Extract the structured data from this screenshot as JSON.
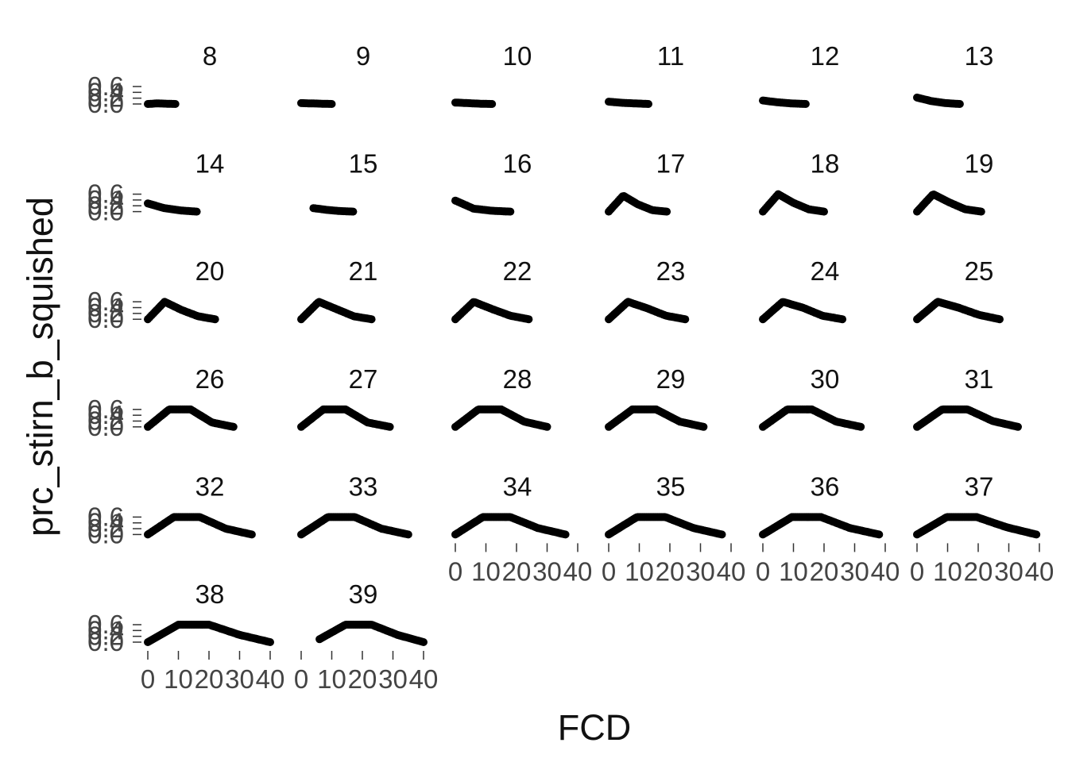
{
  "chart_data": {
    "type": "scatter",
    "facet_by": "panel",
    "xlabel": "FCD",
    "ylabel": "prc_stirn_b_squished",
    "xlim": [
      0,
      40
    ],
    "ylim": [
      0,
      0.6
    ],
    "x_ticks": [
      0,
      10,
      20,
      30,
      40
    ],
    "x_tick_labels": [
      "0",
      "10",
      "20",
      "30",
      "40"
    ],
    "y_ticks": [
      0.0,
      0.2,
      0.4,
      0.6
    ],
    "y_tick_labels": [
      "0.0",
      "0.2",
      "0.4",
      "0.6"
    ],
    "grid": false,
    "legend": "none",
    "panels": [
      {
        "label": "8",
        "x_min": 0,
        "x_max": 9,
        "y_values": [
          0.0,
          0.02,
          0.01,
          0.0
        ]
      },
      {
        "label": "9",
        "x_min": 0,
        "x_max": 10,
        "y_values": [
          0.03,
          0.02,
          0.01,
          0.0
        ]
      },
      {
        "label": "10",
        "x_min": 0,
        "x_max": 12,
        "y_values": [
          0.05,
          0.03,
          0.01,
          0.0
        ]
      },
      {
        "label": "11",
        "x_min": 0,
        "x_max": 13,
        "y_values": [
          0.08,
          0.04,
          0.02,
          0.0
        ]
      },
      {
        "label": "12",
        "x_min": 0,
        "x_max": 14,
        "y_values": [
          0.12,
          0.06,
          0.02,
          0.0
        ]
      },
      {
        "label": "13",
        "x_min": 0,
        "x_max": 14,
        "y_values": [
          0.22,
          0.1,
          0.03,
          0.0
        ]
      },
      {
        "label": "14",
        "x_min": 0,
        "x_max": 16,
        "y_values": [
          0.28,
          0.12,
          0.04,
          0.0
        ]
      },
      {
        "label": "15",
        "x_min": 4,
        "x_max": 17,
        "y_values": [
          0.12,
          0.06,
          0.02,
          0.0
        ]
      },
      {
        "label": "16",
        "x_min": 0,
        "x_max": 18,
        "y_values": [
          0.38,
          0.1,
          0.03,
          0.0
        ]
      },
      {
        "label": "17",
        "x_min": 0,
        "x_max": 19,
        "y_values": [
          0.0,
          0.55,
          0.25,
          0.05,
          0.0
        ]
      },
      {
        "label": "18",
        "x_min": 0,
        "x_max": 20,
        "y_values": [
          0.0,
          0.6,
          0.3,
          0.08,
          0.0
        ]
      },
      {
        "label": "19",
        "x_min": 0,
        "x_max": 21,
        "y_values": [
          0.0,
          0.6,
          0.32,
          0.08,
          0.0
        ]
      },
      {
        "label": "20",
        "x_min": 0,
        "x_max": 22,
        "y_values": [
          0.0,
          0.6,
          0.32,
          0.1,
          0.0
        ]
      },
      {
        "label": "21",
        "x_min": 0,
        "x_max": 23,
        "y_values": [
          0.0,
          0.6,
          0.35,
          0.1,
          0.0
        ]
      },
      {
        "label": "22",
        "x_min": 0,
        "x_max": 24,
        "y_values": [
          0.0,
          0.6,
          0.35,
          0.12,
          0.0
        ]
      },
      {
        "label": "23",
        "x_min": 0,
        "x_max": 25,
        "y_values": [
          0.0,
          0.6,
          0.38,
          0.12,
          0.0
        ]
      },
      {
        "label": "24",
        "x_min": 0,
        "x_max": 26,
        "y_values": [
          0.0,
          0.6,
          0.4,
          0.12,
          0.0
        ]
      },
      {
        "label": "25",
        "x_min": 0,
        "x_max": 27,
        "y_values": [
          0.0,
          0.6,
          0.4,
          0.15,
          0.0
        ]
      },
      {
        "label": "26",
        "x_min": 0,
        "x_max": 28,
        "y_values": [
          0.0,
          0.6,
          0.6,
          0.15,
          0.0
        ]
      },
      {
        "label": "27",
        "x_min": 0,
        "x_max": 29,
        "y_values": [
          0.0,
          0.6,
          0.6,
          0.15,
          0.0
        ]
      },
      {
        "label": "28",
        "x_min": 0,
        "x_max": 30,
        "y_values": [
          0.0,
          0.6,
          0.6,
          0.18,
          0.0
        ]
      },
      {
        "label": "29",
        "x_min": 0,
        "x_max": 31,
        "y_values": [
          0.0,
          0.6,
          0.6,
          0.18,
          0.0
        ]
      },
      {
        "label": "30",
        "x_min": 0,
        "x_max": 32,
        "y_values": [
          0.0,
          0.6,
          0.6,
          0.18,
          0.0
        ]
      },
      {
        "label": "31",
        "x_min": 0,
        "x_max": 33,
        "y_values": [
          0.0,
          0.6,
          0.6,
          0.2,
          0.0
        ]
      },
      {
        "label": "32",
        "x_min": 0,
        "x_max": 34,
        "y_values": [
          0.0,
          0.6,
          0.6,
          0.2,
          0.0
        ]
      },
      {
        "label": "33",
        "x_min": 0,
        "x_max": 35,
        "y_values": [
          0.0,
          0.6,
          0.6,
          0.2,
          0.0
        ]
      },
      {
        "label": "34",
        "x_min": 0,
        "x_max": 36,
        "y_values": [
          0.0,
          0.6,
          0.6,
          0.22,
          0.0
        ]
      },
      {
        "label": "35",
        "x_min": 0,
        "x_max": 37,
        "y_values": [
          0.0,
          0.6,
          0.6,
          0.22,
          0.0
        ]
      },
      {
        "label": "36",
        "x_min": 0,
        "x_max": 38,
        "y_values": [
          0.0,
          0.6,
          0.6,
          0.22,
          0.0
        ]
      },
      {
        "label": "37",
        "x_min": 0,
        "x_max": 39,
        "y_values": [
          0.0,
          0.6,
          0.6,
          0.25,
          0.0
        ]
      },
      {
        "label": "38",
        "x_min": 0,
        "x_max": 40,
        "y_values": [
          0.0,
          0.6,
          0.6,
          0.25,
          0.0
        ]
      },
      {
        "label": "39",
        "x_min": 6,
        "x_max": 40,
        "y_values": [
          0.1,
          0.6,
          0.6,
          0.25,
          0.0
        ]
      }
    ]
  }
}
